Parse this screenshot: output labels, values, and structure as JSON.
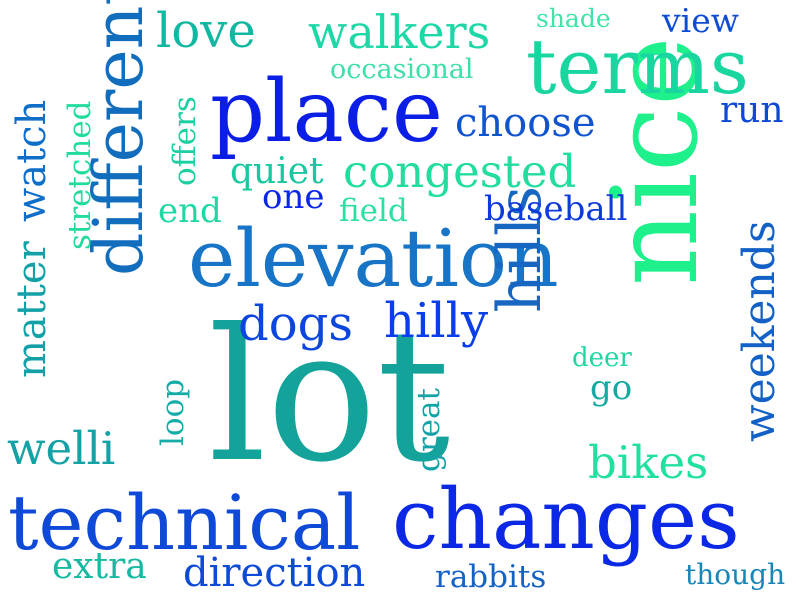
{
  "words": [
    {
      "text": "lot",
      "color": "#14a39a"
    },
    {
      "text": "technical",
      "color": "#0f49d8"
    },
    {
      "text": "changes",
      "color": "#0a28e6"
    },
    {
      "text": "nice",
      "color": "#1ef08c"
    },
    {
      "text": "elevation",
      "color": "#1874c6"
    },
    {
      "text": "place",
      "color": "#0a1ee6"
    },
    {
      "text": "terms",
      "color": "#19d6a1"
    },
    {
      "text": "different",
      "color": "#126dbd"
    },
    {
      "text": "hills",
      "color": "#1766c2"
    },
    {
      "text": "congested",
      "color": "#22dca0"
    },
    {
      "text": "dogs",
      "color": "#0d46df"
    },
    {
      "text": "hilly",
      "color": "#0a3ee8"
    },
    {
      "text": "walkers",
      "color": "#1dd8a6"
    },
    {
      "text": "love",
      "color": "#12b7a1"
    },
    {
      "text": "weekends",
      "color": "#1361c6"
    },
    {
      "text": "matter",
      "color": "#13a1a8"
    },
    {
      "text": "watch",
      "color": "#0f6ec8"
    },
    {
      "text": "welli",
      "color": "#14a2a6"
    },
    {
      "text": "bikes",
      "color": "#22e0a2"
    },
    {
      "text": "choose",
      "color": "#1055cf"
    },
    {
      "text": "quiet",
      "color": "#19c8a0"
    },
    {
      "text": "stretched",
      "color": "#22dc9f"
    },
    {
      "text": "offers",
      "color": "#1ccfa1"
    },
    {
      "text": "direction",
      "color": "#0d4ad5"
    },
    {
      "text": "extra",
      "color": "#18b9a2"
    },
    {
      "text": "rabbits",
      "color": "#1462c6"
    },
    {
      "text": "though",
      "color": "#1a86b8"
    },
    {
      "text": "run",
      "color": "#0e48d6"
    },
    {
      "text": "view",
      "color": "#0d4cd3"
    },
    {
      "text": "shade",
      "color": "#3fe5a6"
    },
    {
      "text": "occasional",
      "color": "#3fdfa6"
    },
    {
      "text": "baseball",
      "color": "#0d3bdb"
    },
    {
      "text": "one",
      "color": "#0a26e8"
    },
    {
      "text": "field",
      "color": "#2edfa3"
    },
    {
      "text": "end",
      "color": "#1ed8a4"
    },
    {
      "text": "loop",
      "color": "#13aca6"
    },
    {
      "text": "great",
      "color": "#13a2a6"
    },
    {
      "text": "go",
      "color": "#15a9a1"
    },
    {
      "text": "deer",
      "color": "#22d6a4"
    }
  ]
}
